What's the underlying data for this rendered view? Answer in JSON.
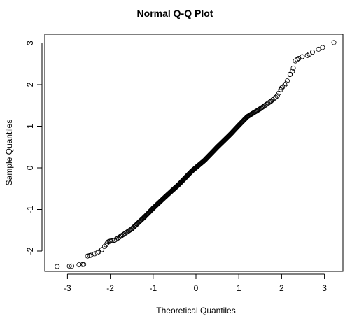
{
  "chart_data": {
    "type": "scatter",
    "title": "Normal Q-Q Plot",
    "xlabel": "Theoretical Quantiles",
    "ylabel": "Sample Quantiles",
    "xlim": [
      -3.3,
      3.3
    ],
    "ylim": [
      -2.55,
      3.2
    ],
    "x_ticks": [
      -3,
      -2,
      -1,
      0,
      1,
      2,
      3
    ],
    "y_ticks": [
      -2,
      -1,
      0,
      1,
      2,
      3
    ],
    "grid": false,
    "legend": "none",
    "n_points": 400,
    "reference_points": [
      {
        "x": -3.24,
        "y": -2.37
      },
      {
        "x": -2.9,
        "y": -2.36
      },
      {
        "x": -2.73,
        "y": -2.33
      },
      {
        "x": -2.62,
        "y": -2.32
      },
      {
        "x": -2.53,
        "y": -2.12
      },
      {
        "x": -2.45,
        "y": -2.1
      },
      {
        "x": -2.3,
        "y": -2.04
      },
      {
        "x": -2.2,
        "y": -1.97
      },
      {
        "x": -2.1,
        "y": -1.85
      },
      {
        "x": -2.05,
        "y": -1.78
      },
      {
        "x": -2.0,
        "y": -1.76
      },
      {
        "x": -1.9,
        "y": -1.74
      },
      {
        "x": -1.75,
        "y": -1.64
      },
      {
        "x": -1.5,
        "y": -1.47
      },
      {
        "x": -1.2,
        "y": -1.18
      },
      {
        "x": -1.0,
        "y": -0.97
      },
      {
        "x": -0.7,
        "y": -0.68
      },
      {
        "x": -0.4,
        "y": -0.4
      },
      {
        "x": -0.1,
        "y": -0.08
      },
      {
        "x": 0.2,
        "y": 0.18
      },
      {
        "x": 0.5,
        "y": 0.5
      },
      {
        "x": 0.8,
        "y": 0.8
      },
      {
        "x": 1.0,
        "y": 1.02
      },
      {
        "x": 1.2,
        "y": 1.23
      },
      {
        "x": 1.5,
        "y": 1.42
      },
      {
        "x": 1.75,
        "y": 1.6
      },
      {
        "x": 1.9,
        "y": 1.73
      },
      {
        "x": 2.0,
        "y": 1.92
      },
      {
        "x": 2.1,
        "y": 2.02
      },
      {
        "x": 2.2,
        "y": 2.25
      },
      {
        "x": 2.25,
        "y": 2.32
      },
      {
        "x": 2.32,
        "y": 2.57
      },
      {
        "x": 2.4,
        "y": 2.63
      },
      {
        "x": 2.48,
        "y": 2.67
      },
      {
        "x": 2.6,
        "y": 2.7
      },
      {
        "x": 2.72,
        "y": 2.78
      },
      {
        "x": 2.86,
        "y": 2.85
      },
      {
        "x": 3.22,
        "y": 3.01
      }
    ]
  }
}
